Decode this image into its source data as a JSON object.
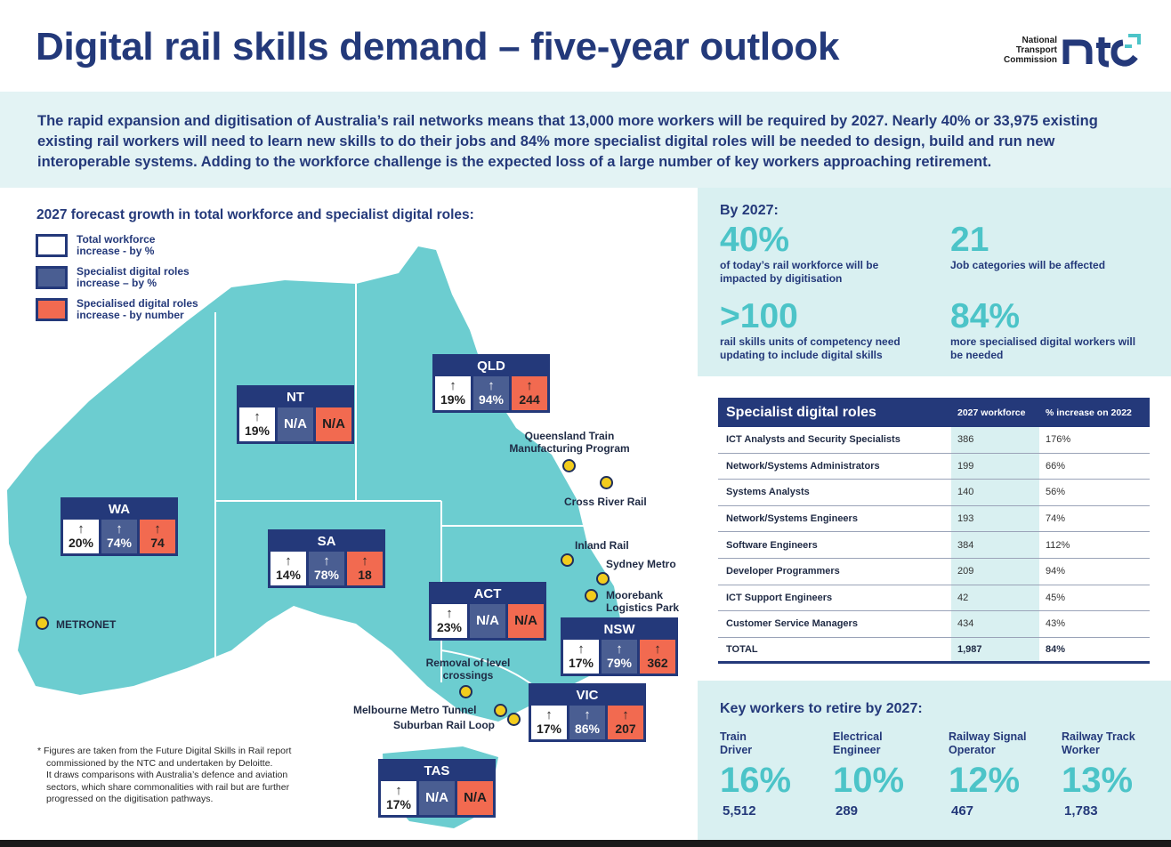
{
  "title": "Digital rail skills demand – five-year outlook",
  "logo": {
    "text_lines": [
      "National",
      "Transport",
      "Commission"
    ],
    "mark": "ntc"
  },
  "intro": "The rapid expansion and digitisation of Australia’s rail networks means that 13,000 more workers will be required by 2027. Nearly 40% or 33,975 existing existing rail workers will need to learn new skills to do their jobs and 84% more specialist digital roles will be needed to design, build and run new interoperable systems. Adding to the workforce challenge is the expected loss of a large number of key workers approaching retirement.",
  "map": {
    "heading": "2027 forecast growth in total workforce and specialist digital roles:",
    "legend": [
      {
        "label": "Total workforce increase - by %",
        "color": "#ffffff"
      },
      {
        "label": "Specialist digital roles increase – by %",
        "color": "#4a5e92"
      },
      {
        "label": "Specialised digital roles increase - by number",
        "color": "#f26a50"
      }
    ],
    "arrow": "↑",
    "states": [
      {
        "name": "NT",
        "total": "19%",
        "specialist": "N/A",
        "number": "N/A"
      },
      {
        "name": "QLD",
        "total": "19%",
        "specialist": "94%",
        "number": "244"
      },
      {
        "name": "WA",
        "total": "20%",
        "specialist": "74%",
        "number": "74"
      },
      {
        "name": "SA",
        "total": "14%",
        "specialist": "78%",
        "number": "18"
      },
      {
        "name": "ACT",
        "total": "23%",
        "specialist": "N/A",
        "number": "N/A"
      },
      {
        "name": "NSW",
        "total": "17%",
        "specialist": "79%",
        "number": "362"
      },
      {
        "name": "VIC",
        "total": "17%",
        "specialist": "86%",
        "number": "207"
      },
      {
        "name": "TAS",
        "total": "17%",
        "specialist": "N/A",
        "number": "N/A"
      }
    ],
    "locations": [
      "Queensland Train Manufacturing Program",
      "Cross River Rail",
      "Inland Rail",
      "Sydney Metro",
      "Moorebank Logistics Park",
      "METRONET",
      "Removal of level crossings",
      "Melbourne Metro Tunnel",
      "Suburban Rail Loop"
    ],
    "footnote": [
      "* Figures are taken from the Future Digital Skills in Rail report",
      "commissioned by the NTC and undertaken by Deloitte.",
      "It draws comparisons with Australia’s defence and aviation",
      "sectors, which share commonalities with rail but are further",
      "progressed on the digitisation pathways."
    ]
  },
  "stats": {
    "title": "By 2027:",
    "items": [
      {
        "value": "40%",
        "label": "of today’s rail workforce will be impacted by digitisation"
      },
      {
        "value": "21",
        "label": "Job categories will be affected"
      },
      {
        "value": ">100",
        "label": "rail skills units of competency need updating to include digital skills"
      },
      {
        "value": "84%",
        "label": "more specialised digital workers will be needed"
      }
    ]
  },
  "roles_table": {
    "title": "Specialist digital roles",
    "col_workforce": "2027 workforce",
    "col_increase": "% increase on 2022",
    "rows": [
      {
        "name": "ICT Analysts and Security Specialists",
        "workforce": "386",
        "increase": "176%"
      },
      {
        "name": "Network/Systems Administrators",
        "workforce": "199",
        "increase": "66%"
      },
      {
        "name": "Systems Analysts",
        "workforce": "140",
        "increase": "56%"
      },
      {
        "name": "Network/Systems Engineers",
        "workforce": "193",
        "increase": "74%"
      },
      {
        "name": "Software Engineers",
        "workforce": "384",
        "increase": "112%"
      },
      {
        "name": "Developer Programmers",
        "workforce": "209",
        "increase": "94%"
      },
      {
        "name": "ICT Support Engineers",
        "workforce": "42",
        "increase": "45%"
      },
      {
        "name": "Customer Service Managers",
        "workforce": "434",
        "increase": "43%"
      }
    ],
    "total": {
      "name": "TOTAL",
      "workforce": "1,987",
      "increase": "84%"
    }
  },
  "retire": {
    "title": "Key workers to retire by 2027:",
    "workers": [
      {
        "role": "Train Driver",
        "pct": "16%",
        "count": "5,512"
      },
      {
        "role": "Electrical Engineer",
        "pct": "10%",
        "count": "289"
      },
      {
        "role": "Railway Signal Operator",
        "pct": "12%",
        "count": "467"
      },
      {
        "role": "Railway Track Worker",
        "pct": "13%",
        "count": "1,783"
      }
    ]
  },
  "colors": {
    "navy": "#24397a",
    "teal": "#4cc4c8",
    "land": "#6ccdd0",
    "orange": "#f26a50",
    "slate": "#4a5e92",
    "dot": "#f2cc1d"
  }
}
